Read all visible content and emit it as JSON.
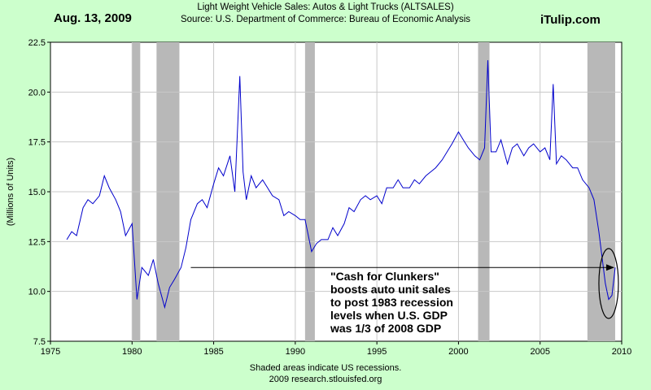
{
  "header": {
    "date": "Aug. 13, 2009",
    "title": "Light Weight Vehicle Sales: Autos & Light Trucks (ALTSALES)",
    "source": "Source: U.S. Department of Commerce: Bureau of Economic Analysis",
    "site": "iTulip.com"
  },
  "footer": {
    "note": "Shaded areas indicate US recessions.",
    "credit": "2009 research.stlouisfed.org"
  },
  "annotation": {
    "lines": [
      "\"Cash for Clunkers\"",
      "boosts auto unit sales",
      "to post 1983 recession",
      "levels when U.S. GDP",
      "was 1/3 of 2008 GDP"
    ]
  },
  "colors": {
    "background": "#ccffcc",
    "plot_background": "#ffffff",
    "line": "#0000cc",
    "recession": "#b8b8b8",
    "grid": "#c8c8c8"
  },
  "chart_data": {
    "type": "line",
    "title": "Light Weight Vehicle Sales: Autos & Light Trucks (ALTSALES)",
    "xlabel": "",
    "ylabel": "(Millions of Units)",
    "xlim": [
      1975,
      2010
    ],
    "ylim": [
      7.5,
      22.5
    ],
    "x_ticks": [
      "1975",
      "1980",
      "1985",
      "1990",
      "1995",
      "2000",
      "2005",
      "2010"
    ],
    "y_ticks": [
      "7.5",
      "10.0",
      "12.5",
      "15.0",
      "17.5",
      "20.0",
      "22.5"
    ],
    "grid": true,
    "recessions": [
      [
        1980.0,
        1980.5
      ],
      [
        1981.5,
        1982.9
      ],
      [
        1990.6,
        1991.2
      ],
      [
        2001.2,
        2001.9
      ],
      [
        2007.9,
        2009.6
      ]
    ],
    "reference_arrow": {
      "from_x": 1983.6,
      "to_x": 2009.5,
      "y": 11.2
    },
    "highlight_ellipse": {
      "center_x": 2009.2,
      "center_y": 10.4,
      "label": ""
    },
    "series": [
      {
        "x": [
          1976.0,
          1976.3,
          1976.6,
          1977.0,
          1977.3,
          1977.6,
          1978.0,
          1978.3,
          1978.6,
          1979.0,
          1979.3,
          1979.6,
          1980.0,
          1980.3,
          1980.6,
          1981.0,
          1981.3,
          1981.6,
          1982.0,
          1982.3,
          1982.6,
          1983.0,
          1983.3,
          1983.6,
          1984.0,
          1984.3,
          1984.6,
          1985.0,
          1985.3,
          1985.6,
          1986.0,
          1986.3,
          1986.6,
          1986.8,
          1987.0,
          1987.3,
          1987.6,
          1988.0,
          1988.3,
          1988.6,
          1989.0,
          1989.3,
          1989.6,
          1990.0,
          1990.3,
          1990.6,
          1991.0,
          1991.3,
          1991.6,
          1992.0,
          1992.3,
          1992.6,
          1993.0,
          1993.3,
          1993.6,
          1994.0,
          1994.3,
          1994.6,
          1995.0,
          1995.3,
          1995.6,
          1996.0,
          1996.3,
          1996.6,
          1997.0,
          1997.3,
          1997.6,
          1998.0,
          1998.3,
          1998.6,
          1999.0,
          1999.3,
          1999.6,
          2000.0,
          2000.3,
          2000.6,
          2001.0,
          2001.3,
          2001.6,
          2001.8,
          2002.0,
          2002.3,
          2002.6,
          2003.0,
          2003.3,
          2003.6,
          2004.0,
          2004.3,
          2004.6,
          2005.0,
          2005.3,
          2005.6,
          2005.8,
          2006.0,
          2006.3,
          2006.6,
          2007.0,
          2007.3,
          2007.6,
          2008.0,
          2008.3,
          2008.6,
          2009.0,
          2009.2,
          2009.4,
          2009.6
        ],
        "values": [
          12.6,
          13.0,
          12.8,
          14.2,
          14.6,
          14.4,
          14.8,
          15.8,
          15.2,
          14.6,
          14.0,
          12.8,
          13.4,
          9.6,
          11.2,
          10.8,
          11.6,
          10.4,
          9.2,
          10.2,
          10.6,
          11.2,
          12.2,
          13.6,
          14.4,
          14.6,
          14.2,
          15.4,
          16.2,
          15.8,
          16.8,
          15.0,
          20.8,
          16.0,
          14.6,
          15.8,
          15.2,
          15.6,
          15.2,
          14.8,
          14.6,
          13.8,
          14.0,
          13.8,
          13.6,
          13.6,
          12.0,
          12.4,
          12.6,
          12.6,
          13.2,
          12.8,
          13.4,
          14.2,
          14.0,
          14.6,
          14.8,
          14.6,
          14.8,
          14.4,
          15.2,
          15.2,
          15.6,
          15.2,
          15.2,
          15.6,
          15.4,
          15.8,
          16.0,
          16.2,
          16.6,
          17.0,
          17.4,
          18.0,
          17.6,
          17.2,
          16.8,
          16.6,
          17.2,
          21.6,
          17.0,
          17.0,
          17.6,
          16.4,
          17.2,
          17.4,
          16.8,
          17.2,
          17.4,
          17.0,
          17.2,
          16.6,
          20.4,
          16.4,
          16.8,
          16.6,
          16.2,
          16.2,
          15.6,
          15.2,
          14.6,
          13.0,
          10.4,
          9.6,
          9.8,
          11.2
        ],
        "color": "#0000cc"
      }
    ]
  }
}
